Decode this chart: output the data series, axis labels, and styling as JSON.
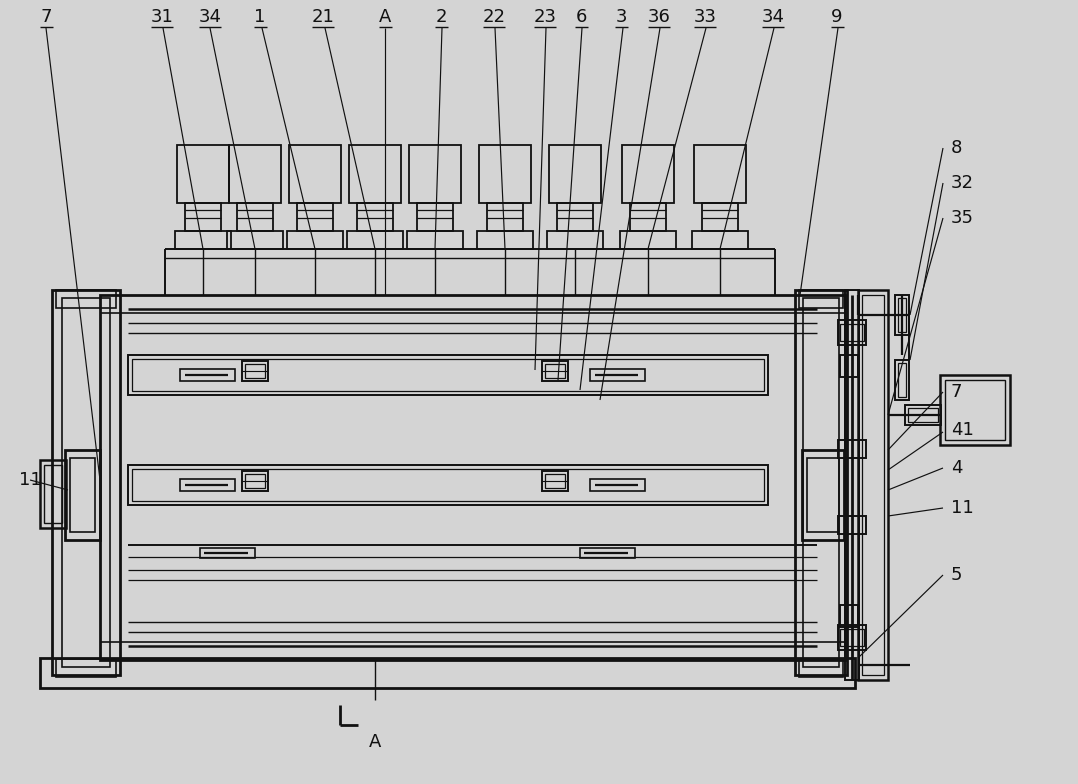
{
  "bg_color": "#d4d4d4",
  "line_color": "#111111",
  "fig_width": 10.78,
  "fig_height": 7.84,
  "dpi": 100
}
